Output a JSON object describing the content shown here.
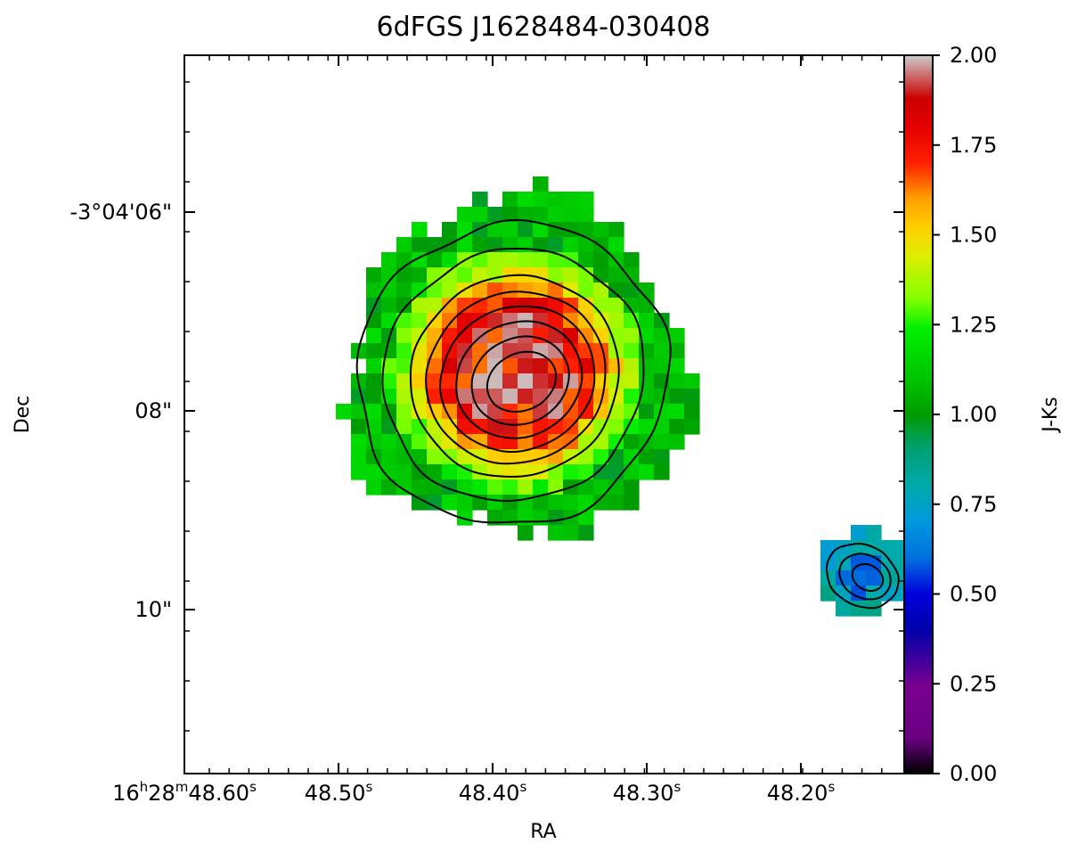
{
  "chart_data": {
    "type": "heatmap",
    "title": "6dFGS J1628484-030408",
    "xlabel": "RA",
    "ylabel": "Dec",
    "x_ticks": [
      {
        "value": "16h28m48.60s",
        "parts": [
          "16",
          "h",
          "28",
          "m",
          "48.60",
          "s"
        ]
      },
      {
        "value": "48.50s",
        "parts": [
          "48.50",
          "s"
        ]
      },
      {
        "value": "48.40s",
        "parts": [
          "48.40",
          "s"
        ]
      },
      {
        "value": "48.30s",
        "parts": [
          "48.30",
          "s"
        ]
      },
      {
        "value": "48.20s",
        "parts": [
          "48.20",
          "s"
        ]
      }
    ],
    "y_ticks": [
      "-3°04'06\"",
      "08\"",
      "10\""
    ],
    "colorbar": {
      "label": "J-Ks",
      "range": [
        0.0,
        2.0
      ],
      "ticks": [
        "0.00",
        "0.25",
        "0.50",
        "0.75",
        "1.00",
        "1.25",
        "1.50",
        "1.75",
        "2.00"
      ],
      "colormap": "nipy_spectral"
    },
    "sources": [
      {
        "name_hint": "main galaxy",
        "ra": "16h28m48.39s",
        "dec": "-3°04'07.9\"",
        "peak_color": 1.95,
        "outer_color": 1.1
      },
      {
        "name_hint": "companion",
        "ra": "16h28m48.14s",
        "dec": "-3°04'09.7\"",
        "peak_color": 0.55,
        "outer_color": 0.8
      }
    ],
    "contours": {
      "color": "#000000",
      "main_levels": 8,
      "companion_levels": 3
    }
  }
}
